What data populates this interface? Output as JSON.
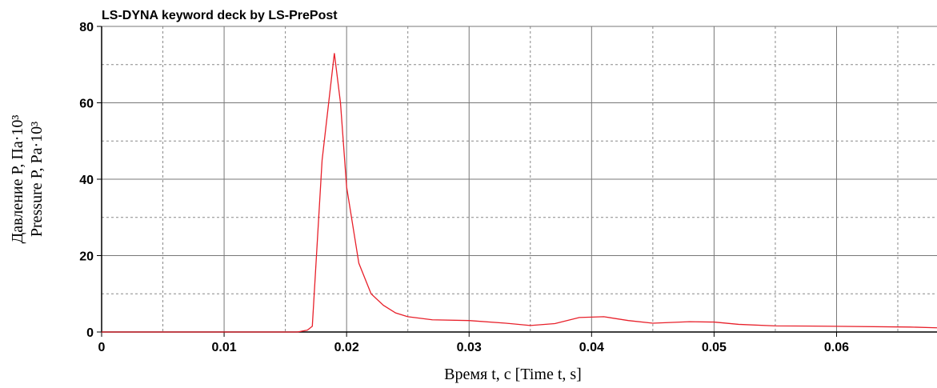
{
  "chart_data": {
    "type": "line",
    "title": "LS-DYNA keyword deck by LS-PrePost",
    "x_label": "Время t, с [Time t, s]",
    "y_label": [
      "Давление P, Па·10³",
      "Pressure P, Pa·10³"
    ],
    "x": [
      0,
      0.016,
      0.0168,
      0.0172,
      0.018,
      0.019,
      0.0195,
      0.02,
      0.021,
      0.022,
      0.023,
      0.024,
      0.025,
      0.027,
      0.03,
      0.033,
      0.035,
      0.037,
      0.039,
      0.041,
      0.043,
      0.045,
      0.048,
      0.05,
      0.052,
      0.055,
      0.06,
      0.066,
      0.0682
    ],
    "series": [
      {
        "name": "Pressure",
        "color": "#e8202a",
        "values": [
          0,
          0,
          0.5,
          1.5,
          45,
          73,
          60,
          38,
          18,
          10,
          7,
          5,
          4,
          3.2,
          3,
          2.3,
          1.7,
          2.2,
          3.8,
          4,
          3,
          2.3,
          2.7,
          2.6,
          2,
          1.6,
          1.5,
          1.3,
          1.1
        ]
      }
    ],
    "xlim": [
      0,
      0.0682
    ],
    "ylim": [
      0,
      80
    ],
    "xticks": [
      0,
      0.01,
      0.02,
      0.03,
      0.04,
      0.05,
      0.06
    ],
    "yticks": [
      0,
      20,
      40,
      60,
      80
    ],
    "xminorticks": [
      0.005,
      0.015,
      0.025,
      0.035,
      0.045,
      0.055,
      0.065
    ],
    "yminorticks": [
      10,
      30,
      50,
      70
    ],
    "grid": true
  }
}
